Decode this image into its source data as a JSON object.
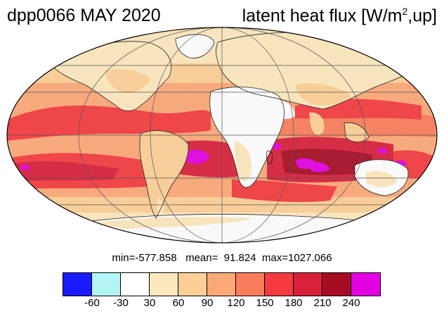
{
  "title": {
    "left": "dpp0066 MAY 2020",
    "right_prefix": "latent heat flux [W/m",
    "right_sup": "2",
    "right_suffix": ",up]"
  },
  "stats": {
    "text": "min=-577.858   mean=  91.824  max=1027.066"
  },
  "colorbar": {
    "colors": [
      "#1a1aff",
      "#b3f5f5",
      "#ffffff",
      "#fde8bd",
      "#fdcf96",
      "#fca877",
      "#fa7d5b",
      "#f43b3f",
      "#d8203a",
      "#a60d24",
      "#e200e2"
    ],
    "tick_labels": [
      "-60",
      "-30",
      "30",
      "60",
      "90",
      "120",
      "150",
      "180",
      "210",
      "240"
    ]
  }
}
